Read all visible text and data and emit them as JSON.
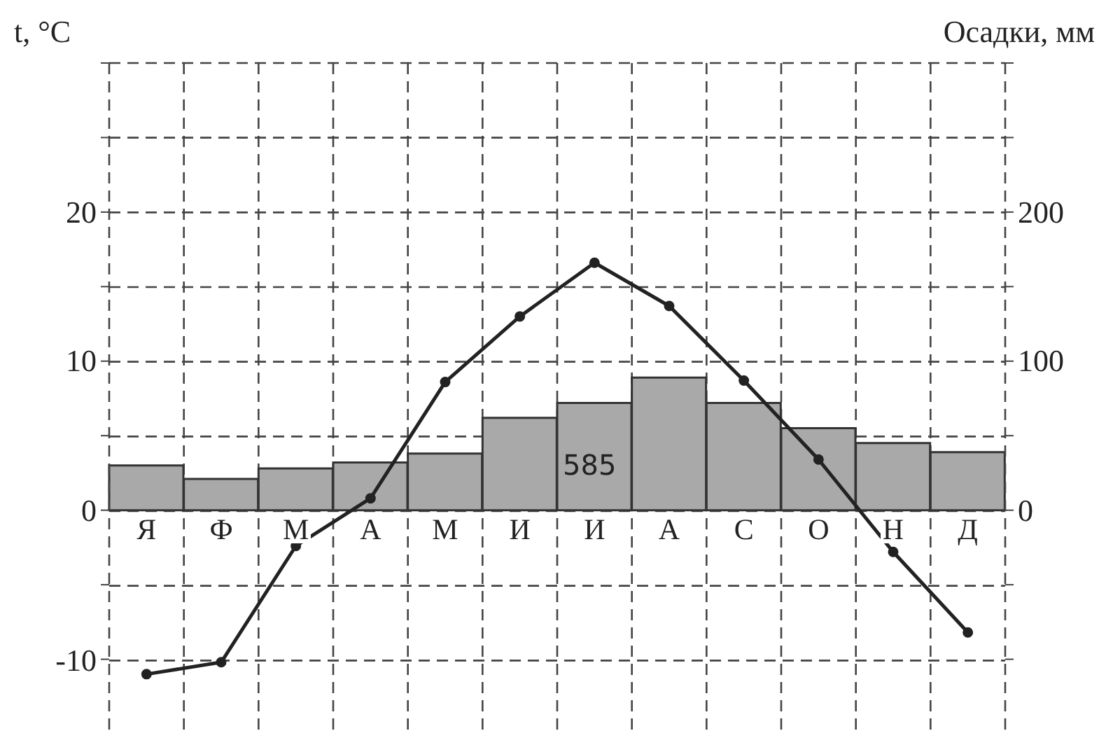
{
  "chart_data": {
    "type": "bar",
    "ylabel": "t, °C",
    "y2label": "Осадки, мм",
    "categories": [
      "Я",
      "Ф",
      "М",
      "А",
      "М",
      "И",
      "И",
      "А",
      "С",
      "О",
      "Н",
      "Д"
    ],
    "series": [
      {
        "axis": "y2",
        "color": "#a9a9a9",
        "values": [
          30,
          21,
          28,
          32,
          38,
          62,
          72,
          89,
          72,
          55,
          45,
          39
        ]
      },
      {
        "type": "line",
        "axis": "y",
        "color": "#222222",
        "marker": "circle",
        "line_style": "solid",
        "values": [
          -11.0,
          -10.2,
          -2.4,
          0.8,
          8.6,
          13.0,
          16.6,
          13.7,
          8.7,
          3.4,
          -2.8,
          -8.2
        ]
      }
    ],
    "ylim": [
      -15,
      30
    ],
    "yticks": [
      -10,
      {
        "value": -5,
        "label": null
      },
      0,
      {
        "value": 5,
        "label": null
      },
      10,
      {
        "value": 15,
        "label": null
      },
      20,
      {
        "value": 25,
        "label": null
      },
      {
        "value": 30,
        "label": null
      }
    ],
    "y2lim": [
      -150,
      300
    ],
    "y2ticks": [
      {
        "value": -100,
        "label": null
      },
      {
        "value": -50,
        "label": null
      },
      0,
      {
        "value": 50,
        "label": null
      },
      100,
      {
        "value": 150,
        "label": null
      },
      200,
      {
        "value": 250,
        "label": null
      },
      {
        "value": 300,
        "label": null
      }
    ],
    "grid": true,
    "annotations": [
      "585"
    ]
  }
}
